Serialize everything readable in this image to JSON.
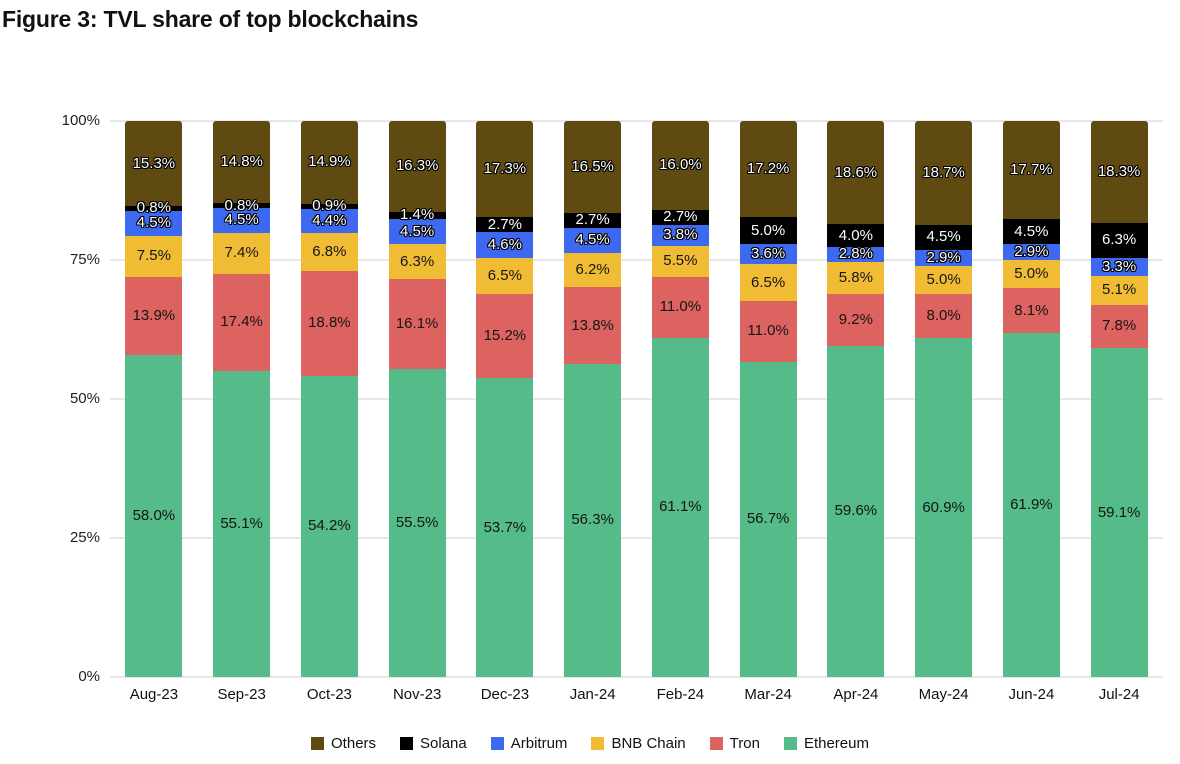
{
  "title": "Figure 3: TVL share of top blockchains",
  "chart_data": {
    "type": "bar",
    "variant": "stacked-percent-column",
    "title": "Figure 3: TVL share of top blockchains",
    "categories": [
      "Aug-23",
      "Sep-23",
      "Oct-23",
      "Nov-23",
      "Dec-23",
      "Jan-24",
      "Feb-24",
      "Mar-24",
      "Apr-24",
      "May-24",
      "Jun-24",
      "Jul-24"
    ],
    "stack_order": "top-to-bottom",
    "series": [
      {
        "name": "Others",
        "color": "#5f4a12",
        "label_style": "light",
        "values": [
          15.3,
          14.8,
          14.9,
          16.3,
          17.3,
          16.5,
          16.0,
          17.2,
          18.6,
          18.7,
          17.7,
          18.3
        ]
      },
      {
        "name": "Solana",
        "color": "#000000",
        "label_style": "light",
        "values": [
          0.8,
          0.8,
          0.9,
          1.4,
          2.7,
          2.7,
          2.7,
          5.0,
          4.0,
          4.5,
          4.5,
          6.3
        ]
      },
      {
        "name": "Arbitrum",
        "color": "#3d68f0",
        "label_style": "light",
        "values": [
          4.5,
          4.5,
          4.4,
          4.5,
          4.6,
          4.5,
          3.8,
          3.6,
          2.8,
          2.9,
          2.9,
          3.3
        ]
      },
      {
        "name": "BNB Chain",
        "color": "#f0bc33",
        "label_style": "dark",
        "values": [
          7.5,
          7.4,
          6.8,
          6.3,
          6.5,
          6.2,
          5.5,
          6.5,
          5.8,
          5.0,
          5.0,
          5.1
        ]
      },
      {
        "name": "Tron",
        "color": "#dd6361",
        "label_style": "dark",
        "values": [
          13.9,
          17.4,
          18.8,
          16.1,
          15.2,
          13.8,
          11.0,
          11.0,
          9.2,
          8.0,
          8.1,
          7.8
        ]
      },
      {
        "name": "Ethereum",
        "color": "#54bb89",
        "label_style": "dark",
        "values": [
          58.0,
          55.1,
          54.2,
          55.5,
          53.7,
          56.3,
          61.1,
          56.7,
          59.6,
          60.9,
          61.9,
          59.1
        ]
      }
    ],
    "value_suffix": "%",
    "y_axis": {
      "min": 0,
      "max": 100,
      "ticks": [
        "100%",
        "75%",
        "50%",
        "25%",
        "0%"
      ],
      "tick_values": [
        100,
        75,
        50,
        25,
        0
      ]
    },
    "grid": true,
    "legend": [
      "Others",
      "Solana",
      "Arbitrum",
      "BNB Chain",
      "Tron",
      "Ethereum"
    ],
    "legend_position": "bottom"
  }
}
